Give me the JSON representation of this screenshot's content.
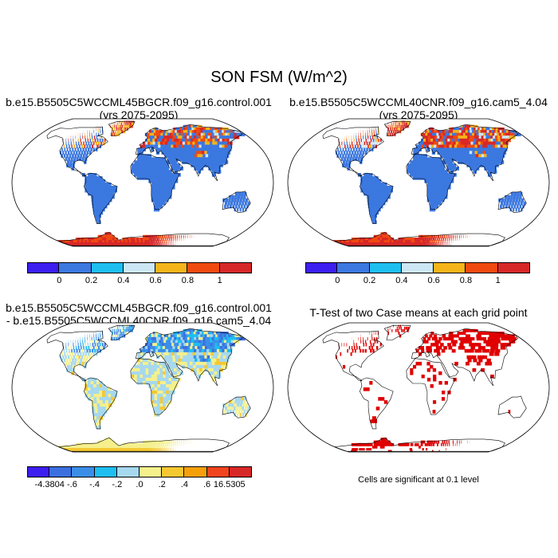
{
  "figure": {
    "title": "SON FSM (W/m^2)"
  },
  "panels": [
    {
      "id": "case1",
      "title_line1": "b.e15.B5505C5WCCML45BGCR.f09_g16.control.001",
      "title_line2": "(yrs 2075-2095)"
    },
    {
      "id": "case2",
      "title_line1": "b.e15.B5505C5WCCML40CNR.f09_g16.cam5_4.04",
      "title_line2": "(yrs 2075-2095)"
    },
    {
      "id": "difference",
      "title_line1": "b.e15.B5505C5WCCML45BGCR.f09_g16.control.001",
      "title_line2": "- b.e15.B5505C5WCCML40CNR.f09_g16.cam5_4.04"
    },
    {
      "id": "ttest",
      "title_line1": "T-Test of two Case means at each grid point",
      "footnote": "Cells are significant at 0.1 level"
    }
  ],
  "colorbars": {
    "case": {
      "colors": [
        "#3c1ef0",
        "#3b78e0",
        "#1ebef0",
        "#cce6f4",
        "#f5b41a",
        "#f04a10",
        "#d72828"
      ],
      "labels": [
        "0",
        "0.2",
        "0.4",
        "0.6",
        "0.8",
        "1"
      ]
    },
    "diff": {
      "colors": [
        "#3c1ef0",
        "#3b6fe0",
        "#3b8ee8",
        "#1ebef0",
        "#a6d8ee",
        "#f5f08c",
        "#f5c832",
        "#f5a00a",
        "#f0441e",
        "#d72828"
      ],
      "labels": [
        "-4.3804",
        "-.6",
        "-.4",
        "-.2",
        ".0",
        ".2",
        ".4",
        ".6",
        "16.5305"
      ]
    }
  },
  "map_colors": {
    "ocean": "#ffffff",
    "land_low": "#3b78e0",
    "diff_land": "#a6d8ee",
    "sig": "#e00000"
  }
}
